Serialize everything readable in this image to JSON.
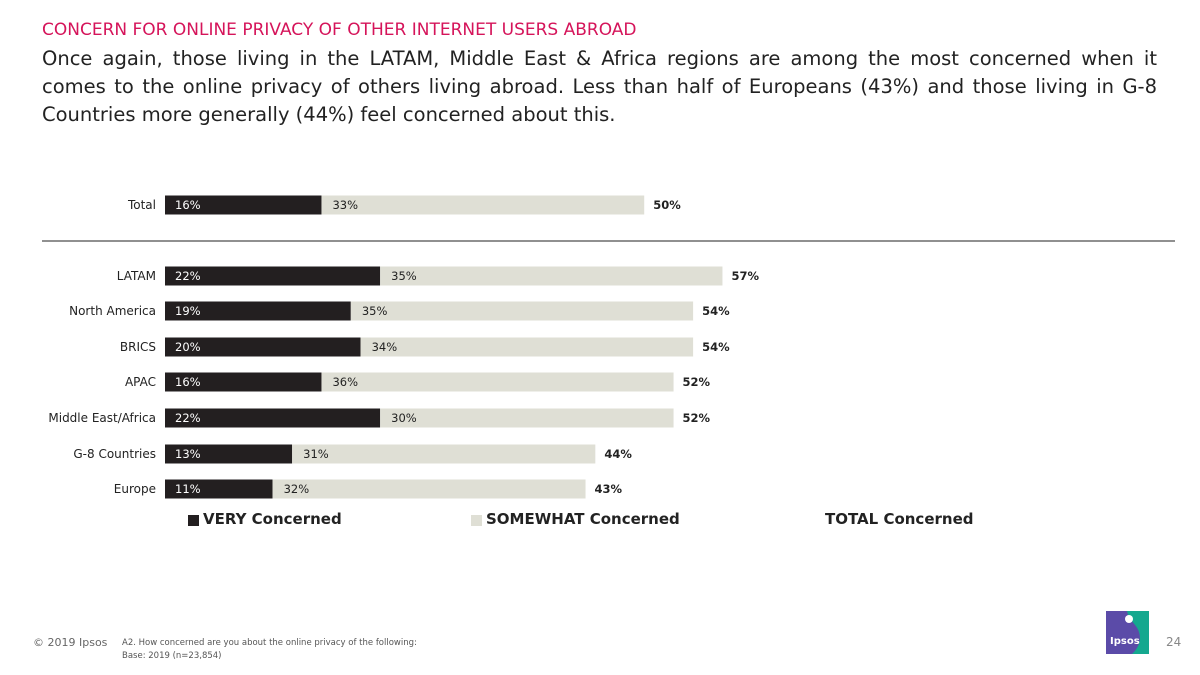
{
  "header": {
    "kicker": "CONCERN FOR ONLINE PRIVACY OF OTHER INTERNET USERS ABROAD",
    "lead": "Once again, those living in the LATAM, Middle East & Africa regions are among the most concerned when it comes to the online privacy of others living abroad. Less than half of Europeans (43%) and those living in G-8 Countries more generally (44%) feel concerned about this."
  },
  "colors": {
    "very": "#231f20",
    "somewhat": "#dfdfd5",
    "kicker": "#d5145a",
    "logo": "#5b4ba8",
    "logo_accent": "#15a88f"
  },
  "chart_data": {
    "type": "bar",
    "orientation": "horizontal",
    "stacked": true,
    "categories": [
      "Total",
      "LATAM",
      "North America",
      "BRICS",
      "APAC",
      "Middle East/Africa",
      "G-8 Countries",
      "Europe"
    ],
    "series": [
      {
        "name": "VERY Concerned",
        "values": [
          16,
          22,
          19,
          20,
          16,
          22,
          13,
          11
        ]
      },
      {
        "name": "SOMEWHAT Concerned",
        "values": [
          33,
          35,
          35,
          34,
          36,
          30,
          31,
          32
        ]
      },
      {
        "name": "TOTAL Concerned",
        "values": [
          50,
          57,
          54,
          54,
          52,
          52,
          44,
          43
        ]
      }
    ],
    "value_suffix": "%",
    "legend_position": "bottom",
    "grid": false
  },
  "legend": {
    "very": "VERY Concerned",
    "somewhat": "SOMEWHAT Concerned",
    "total": "TOTAL Concerned"
  },
  "footer": {
    "copyright": "© 2019 Ipsos",
    "question": "A2. How concerned are you about the online privacy of the following:",
    "base": "Base: 2019 (n=23,854)",
    "page": "24",
    "logo_text": "Ipsos"
  }
}
